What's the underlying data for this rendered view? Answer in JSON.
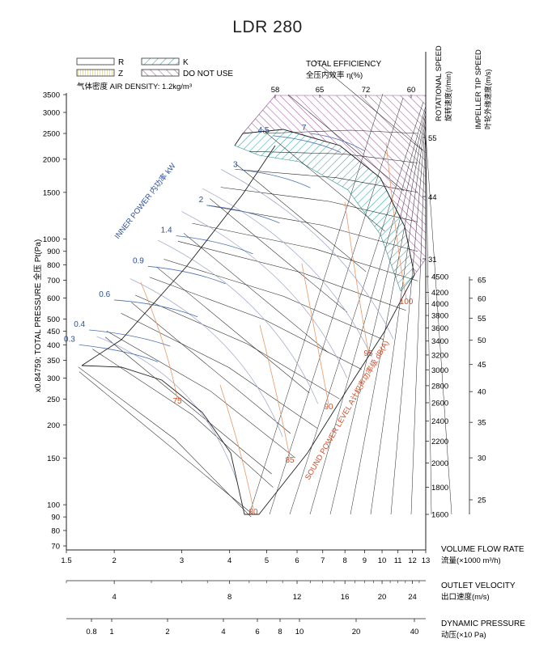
{
  "title": "LDR 280",
  "legend": {
    "r": "R",
    "z": "Z",
    "k": "K",
    "dnu": "DO NOT USE",
    "density": "气体密度 AIR DENSITY: 1.2kg/m³"
  },
  "labels": {
    "efficiency_en": "TOTAL EFFICIENCY",
    "efficiency_cn": "全压内效率 η(%)",
    "rot_speed_en": "ROTATIONAL SPEED",
    "rot_speed_cn": "旋转速度(r/min)",
    "tip_speed_en": "IMPELLER TIP SPEED",
    "tip_speed_cn": "叶轮外缘速度(m/s)",
    "y_axis": "x0.84759; TOTAL PRESSURE 全压 Pt(Pa)",
    "power": "INNER POWER 内功率 kW",
    "sound": "SOUND POWER LEVEL A计权声功率级 dB(A)",
    "flow_en": "VOLUME FLOW RATE",
    "flow_cn": "流量(×1000 m³/h)",
    "velocity_en": "OUTLET VELOCITY",
    "velocity_cn": "出口速度(m/s)",
    "dynamic_en": "DYNAMIC PRESSURE",
    "dynamic_cn": "动压(×10 Pa)"
  },
  "colors": {
    "axis": "#222222",
    "grid": "#222222",
    "power_curve": "#4a6fb0",
    "efficiency_curve": "#9aa3c9",
    "sound_curve": "#e89a6a",
    "sound_text": "#d2502a",
    "power_text": "#2a4f9a",
    "zone_k": "#2fa5a5",
    "zone_dnu": "#a05a9c"
  },
  "chart_data": {
    "type": "line",
    "title": "LDR 280",
    "x_scale": "log",
    "y_scale": "log",
    "xlim": [
      1.5,
      13
    ],
    "ylim": [
      70,
      3500
    ],
    "x_ticks": [
      1.5,
      2,
      3,
      4,
      5,
      6,
      7,
      8,
      9,
      10,
      11,
      12,
      13
    ],
    "y_ticks": [
      70,
      80,
      90,
      100,
      150,
      200,
      250,
      300,
      350,
      400,
      450,
      500,
      600,
      700,
      800,
      900,
      1000,
      1500,
      2000,
      2500,
      3000,
      3500
    ],
    "xlabel": "VOLUME FLOW RATE 流量(×1000 m³/h)",
    "ylabel": "x0.84759; TOTAL PRESSURE 全压 Pt(Pa)",
    "rotational_speed_ticks": [
      1600,
      1800,
      2000,
      2200,
      2400,
      2600,
      2800,
      3000,
      3200,
      3400,
      3600,
      3800,
      4000,
      4200,
      4500
    ],
    "tip_speed_ticks": [
      25,
      30,
      35,
      40,
      45,
      50,
      55,
      60,
      65
    ],
    "tip_speed_ticks_high": [
      31,
      44,
      55
    ],
    "efficiency_ticks": [
      "58",
      "65",
      "72",
      "60"
    ],
    "inner_power_labels": [
      "0.3",
      "0.4",
      "0.6",
      "0.9",
      "1.4",
      "2",
      "3",
      "4.5",
      "7"
    ],
    "inner_power_series": [
      {
        "name": "0.3",
        "points": [
          [
            1.62,
            400
          ],
          [
            2.2,
            370
          ],
          [
            2.6,
            345
          ]
        ]
      },
      {
        "name": "0.4",
        "points": [
          [
            1.72,
            455
          ],
          [
            2.3,
            425
          ],
          [
            2.8,
            395
          ]
        ]
      },
      {
        "name": "0.6",
        "points": [
          [
            2.0,
            590
          ],
          [
            2.7,
            555
          ],
          [
            3.3,
            510
          ]
        ]
      },
      {
        "name": "0.9",
        "points": [
          [
            2.45,
            790
          ],
          [
            3.2,
            740
          ],
          [
            3.9,
            680
          ]
        ]
      },
      {
        "name": "1.4",
        "points": [
          [
            2.9,
            1030
          ],
          [
            3.8,
            960
          ],
          [
            4.6,
            880
          ]
        ]
      },
      {
        "name": "2",
        "points": [
          [
            3.5,
            1340
          ],
          [
            4.5,
            1250
          ],
          [
            5.4,
            1150
          ]
        ]
      },
      {
        "name": "3",
        "points": [
          [
            4.3,
            1820
          ],
          [
            5.5,
            1700
          ],
          [
            6.5,
            1560
          ]
        ]
      },
      {
        "name": "4.5",
        "points": [
          [
            5.2,
            2450
          ],
          [
            6.6,
            2300
          ],
          [
            7.8,
            2120
          ]
        ]
      },
      {
        "name": "7",
        "points": [
          [
            6.5,
            2500
          ],
          [
            7.8,
            2350
          ],
          [
            9.0,
            2150
          ]
        ]
      }
    ],
    "sound_power_labels": [
      "75",
      "80",
      "85",
      "90",
      "95",
      "100"
    ],
    "outlet_velocity_ticks": [
      4,
      8,
      12,
      16,
      20,
      24
    ],
    "dynamic_pressure_ticks": [
      "0.8",
      "1",
      "2",
      "4",
      "6",
      "8",
      "10",
      "20",
      "40"
    ]
  }
}
